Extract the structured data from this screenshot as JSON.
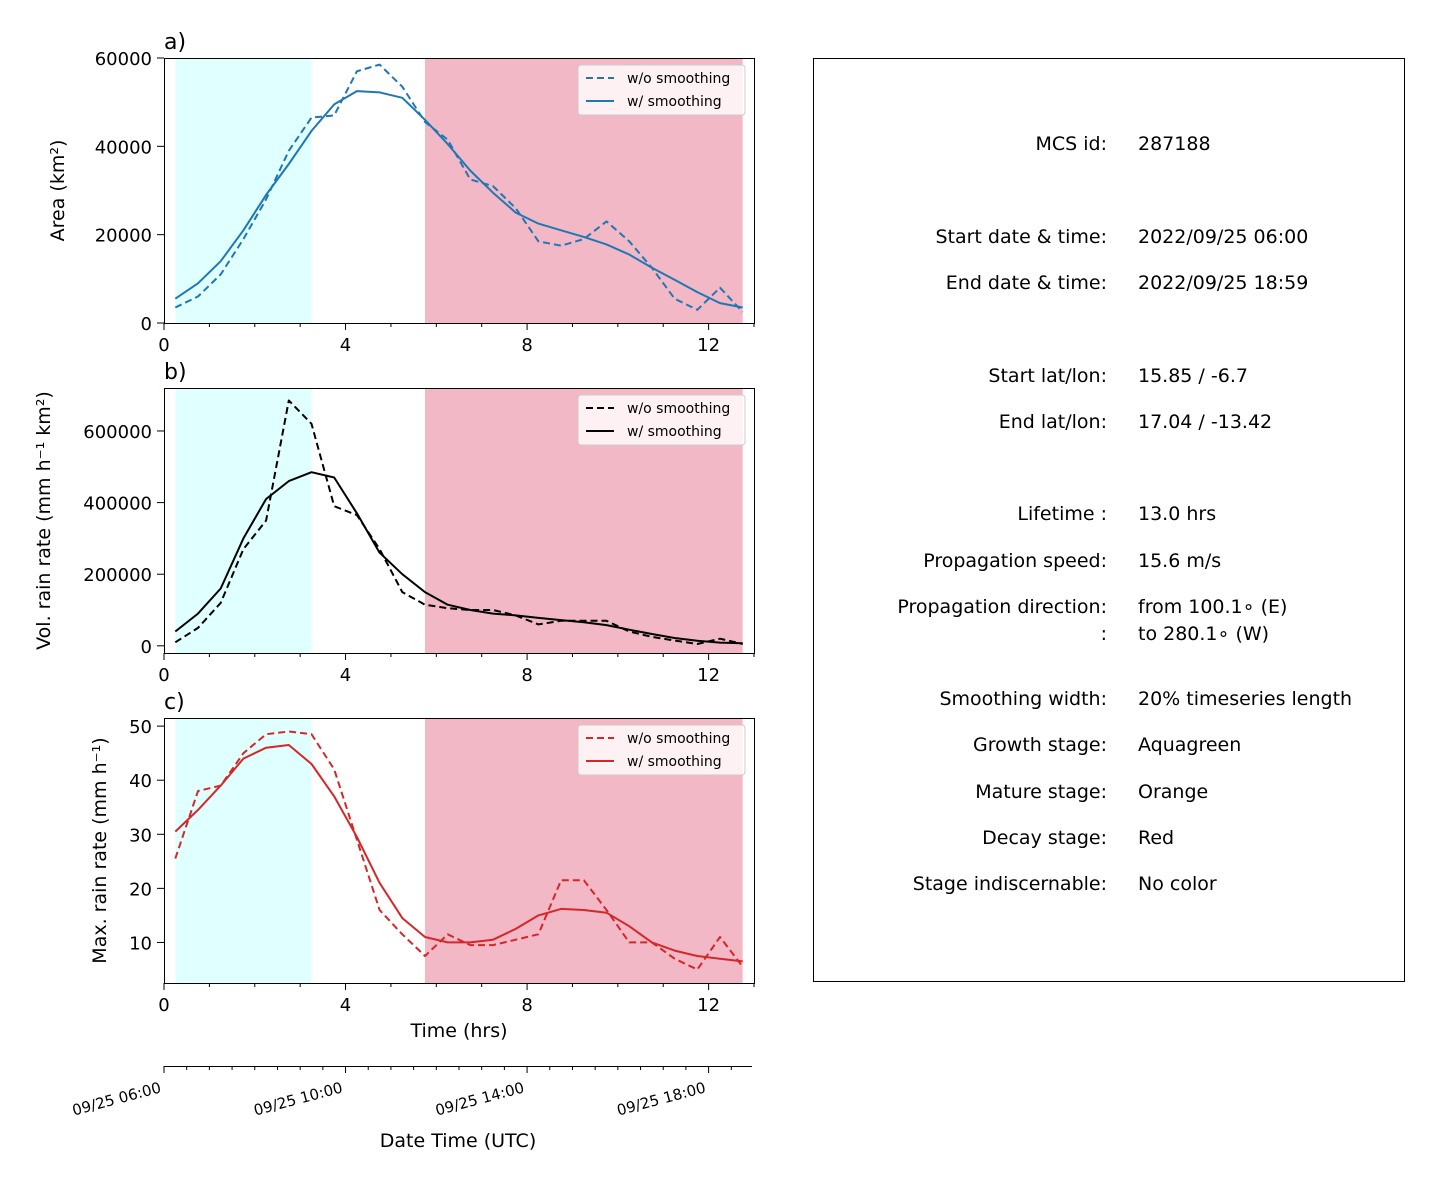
{
  "colors": {
    "growth": "#e0ffff",
    "decay": "#f3b8c5",
    "area": "#1f77b4",
    "vol": "#000000",
    "max": "#d62728"
  },
  "stages": {
    "growth": [
      0.25,
      3.25
    ],
    "decay": [
      5.75,
      12.75
    ]
  },
  "x_ticks": [
    0,
    4,
    8,
    12
  ],
  "xlim": [
    0,
    13
  ],
  "bottom_xlabel": "Time (hrs)",
  "date_axis": {
    "ticks": [
      "09/25 06:00",
      "09/25 10:00",
      "09/25 14:00",
      "09/25 18:00"
    ],
    "label": "Date Time (UTC)"
  },
  "chart_data": [
    {
      "type": "line",
      "panel": "a)",
      "ylabel": "Area  (km²)",
      "ylim": [
        0,
        60000
      ],
      "yticks": [
        0,
        20000,
        40000,
        60000
      ],
      "legend": "top-right",
      "x": [
        0.25,
        0.75,
        1.25,
        1.75,
        2.25,
        2.75,
        3.25,
        3.75,
        4.25,
        4.75,
        5.25,
        5.75,
        6.25,
        6.75,
        7.25,
        7.75,
        8.25,
        8.75,
        9.25,
        9.75,
        10.25,
        10.75,
        11.25,
        11.75,
        12.25,
        12.75
      ],
      "series": [
        {
          "name": "w/o smoothing",
          "style": "dashed",
          "values": [
            3500,
            6000,
            11000,
            19000,
            28000,
            39000,
            46500,
            47000,
            57000,
            58500,
            53500,
            45500,
            41500,
            32500,
            31000,
            26000,
            18500,
            17500,
            19000,
            23000,
            18500,
            12500,
            5500,
            3000,
            8000,
            2500
          ]
        },
        {
          "name": "w/ smoothing",
          "style": "solid",
          "values": [
            5500,
            9000,
            14000,
            21000,
            29000,
            36000,
            43500,
            49500,
            52500,
            52200,
            51000,
            46000,
            40500,
            34500,
            29500,
            25000,
            22500,
            21000,
            19500,
            17800,
            15500,
            12500,
            9800,
            7000,
            4500,
            3500
          ]
        }
      ]
    },
    {
      "type": "line",
      "panel": "b)",
      "ylabel": "Vol. rain rate (mm h⁻¹ km²)",
      "ylim": [
        -20000,
        720000
      ],
      "yticks": [
        0,
        200000,
        400000,
        600000
      ],
      "legend": "top-right",
      "x": [
        0.25,
        0.75,
        1.25,
        1.75,
        2.25,
        2.75,
        3.25,
        3.75,
        4.25,
        4.75,
        5.25,
        5.75,
        6.25,
        6.75,
        7.25,
        7.75,
        8.25,
        8.75,
        9.25,
        9.75,
        10.25,
        10.75,
        11.25,
        11.75,
        12.25,
        12.75
      ],
      "series": [
        {
          "name": "w/o smoothing",
          "style": "dashed",
          "values": [
            10000,
            50000,
            120000,
            270000,
            350000,
            685000,
            620000,
            390000,
            365000,
            270000,
            150000,
            115000,
            105000,
            100000,
            100000,
            85000,
            60000,
            70000,
            70000,
            70000,
            40000,
            25000,
            15000,
            5000,
            20000,
            5000
          ]
        },
        {
          "name": "w/ smoothing",
          "style": "solid",
          "values": [
            40000,
            90000,
            160000,
            300000,
            410000,
            460000,
            485000,
            470000,
            370000,
            260000,
            200000,
            150000,
            115000,
            100000,
            90000,
            85000,
            78000,
            72000,
            66000,
            58000,
            45000,
            33000,
            22000,
            14000,
            9000,
            7000
          ]
        }
      ]
    },
    {
      "type": "line",
      "panel": "c)",
      "ylabel": "Max. rain rate  (mm h⁻¹)",
      "ylim": [
        2.5,
        51.5
      ],
      "yticks": [
        10,
        20,
        30,
        40,
        50
      ],
      "legend": "top-right",
      "x": [
        0.25,
        0.75,
        1.25,
        1.75,
        2.25,
        2.75,
        3.25,
        3.75,
        4.25,
        4.75,
        5.25,
        5.75,
        6.25,
        6.75,
        7.25,
        7.75,
        8.25,
        8.75,
        9.25,
        9.75,
        10.25,
        10.75,
        11.25,
        11.75,
        12.25,
        12.75
      ],
      "series": [
        {
          "name": "w/o smoothing",
          "style": "dashed",
          "values": [
            25.5,
            38,
            39,
            45,
            48.5,
            49,
            48.5,
            42,
            29,
            16,
            11.5,
            7.5,
            11.5,
            9.5,
            9.5,
            10.5,
            11.5,
            21.5,
            21.5,
            16,
            10,
            10,
            7,
            5,
            11,
            5.5
          ]
        },
        {
          "name": "w/ smoothing",
          "style": "solid",
          "values": [
            30.5,
            34.5,
            39,
            44,
            46,
            46.5,
            43,
            37,
            29.5,
            21,
            14.5,
            11,
            10,
            10,
            10.5,
            12.5,
            15,
            16.2,
            16,
            15.5,
            13,
            10,
            8.5,
            7.5,
            7,
            6.5
          ]
        }
      ]
    }
  ],
  "info": {
    "rows": [
      {
        "label": "MCS id:",
        "value": "287188"
      },
      {
        "label": "Start date & time:",
        "value": "2022/09/25 06:00"
      },
      {
        "label": "End date & time:",
        "value": "2022/09/25 18:59"
      },
      {
        "label": "Start lat/lon:",
        "value": "15.85 / -6.7"
      },
      {
        "label": "End lat/lon:",
        "value": "17.04 / -13.42"
      },
      {
        "label": "Lifetime :",
        "value": "13.0 hrs"
      },
      {
        "label": "Propagation speed:",
        "value": "15.6 m/s"
      },
      {
        "label": "Propagation direction:",
        "value": "from 100.1∘ (E)"
      },
      {
        "label": ":",
        "value": "to   280.1∘ (W)"
      },
      {
        "label": "Smoothing width:",
        "value": "20% timeseries length"
      },
      {
        "label": "Growth stage:",
        "value": "Aquagreen"
      },
      {
        "label": "Mature stage:",
        "value": "Orange"
      },
      {
        "label": "Decay stage:",
        "value": "Red"
      },
      {
        "label": "Stage indiscernable:",
        "value": "No color"
      }
    ]
  }
}
